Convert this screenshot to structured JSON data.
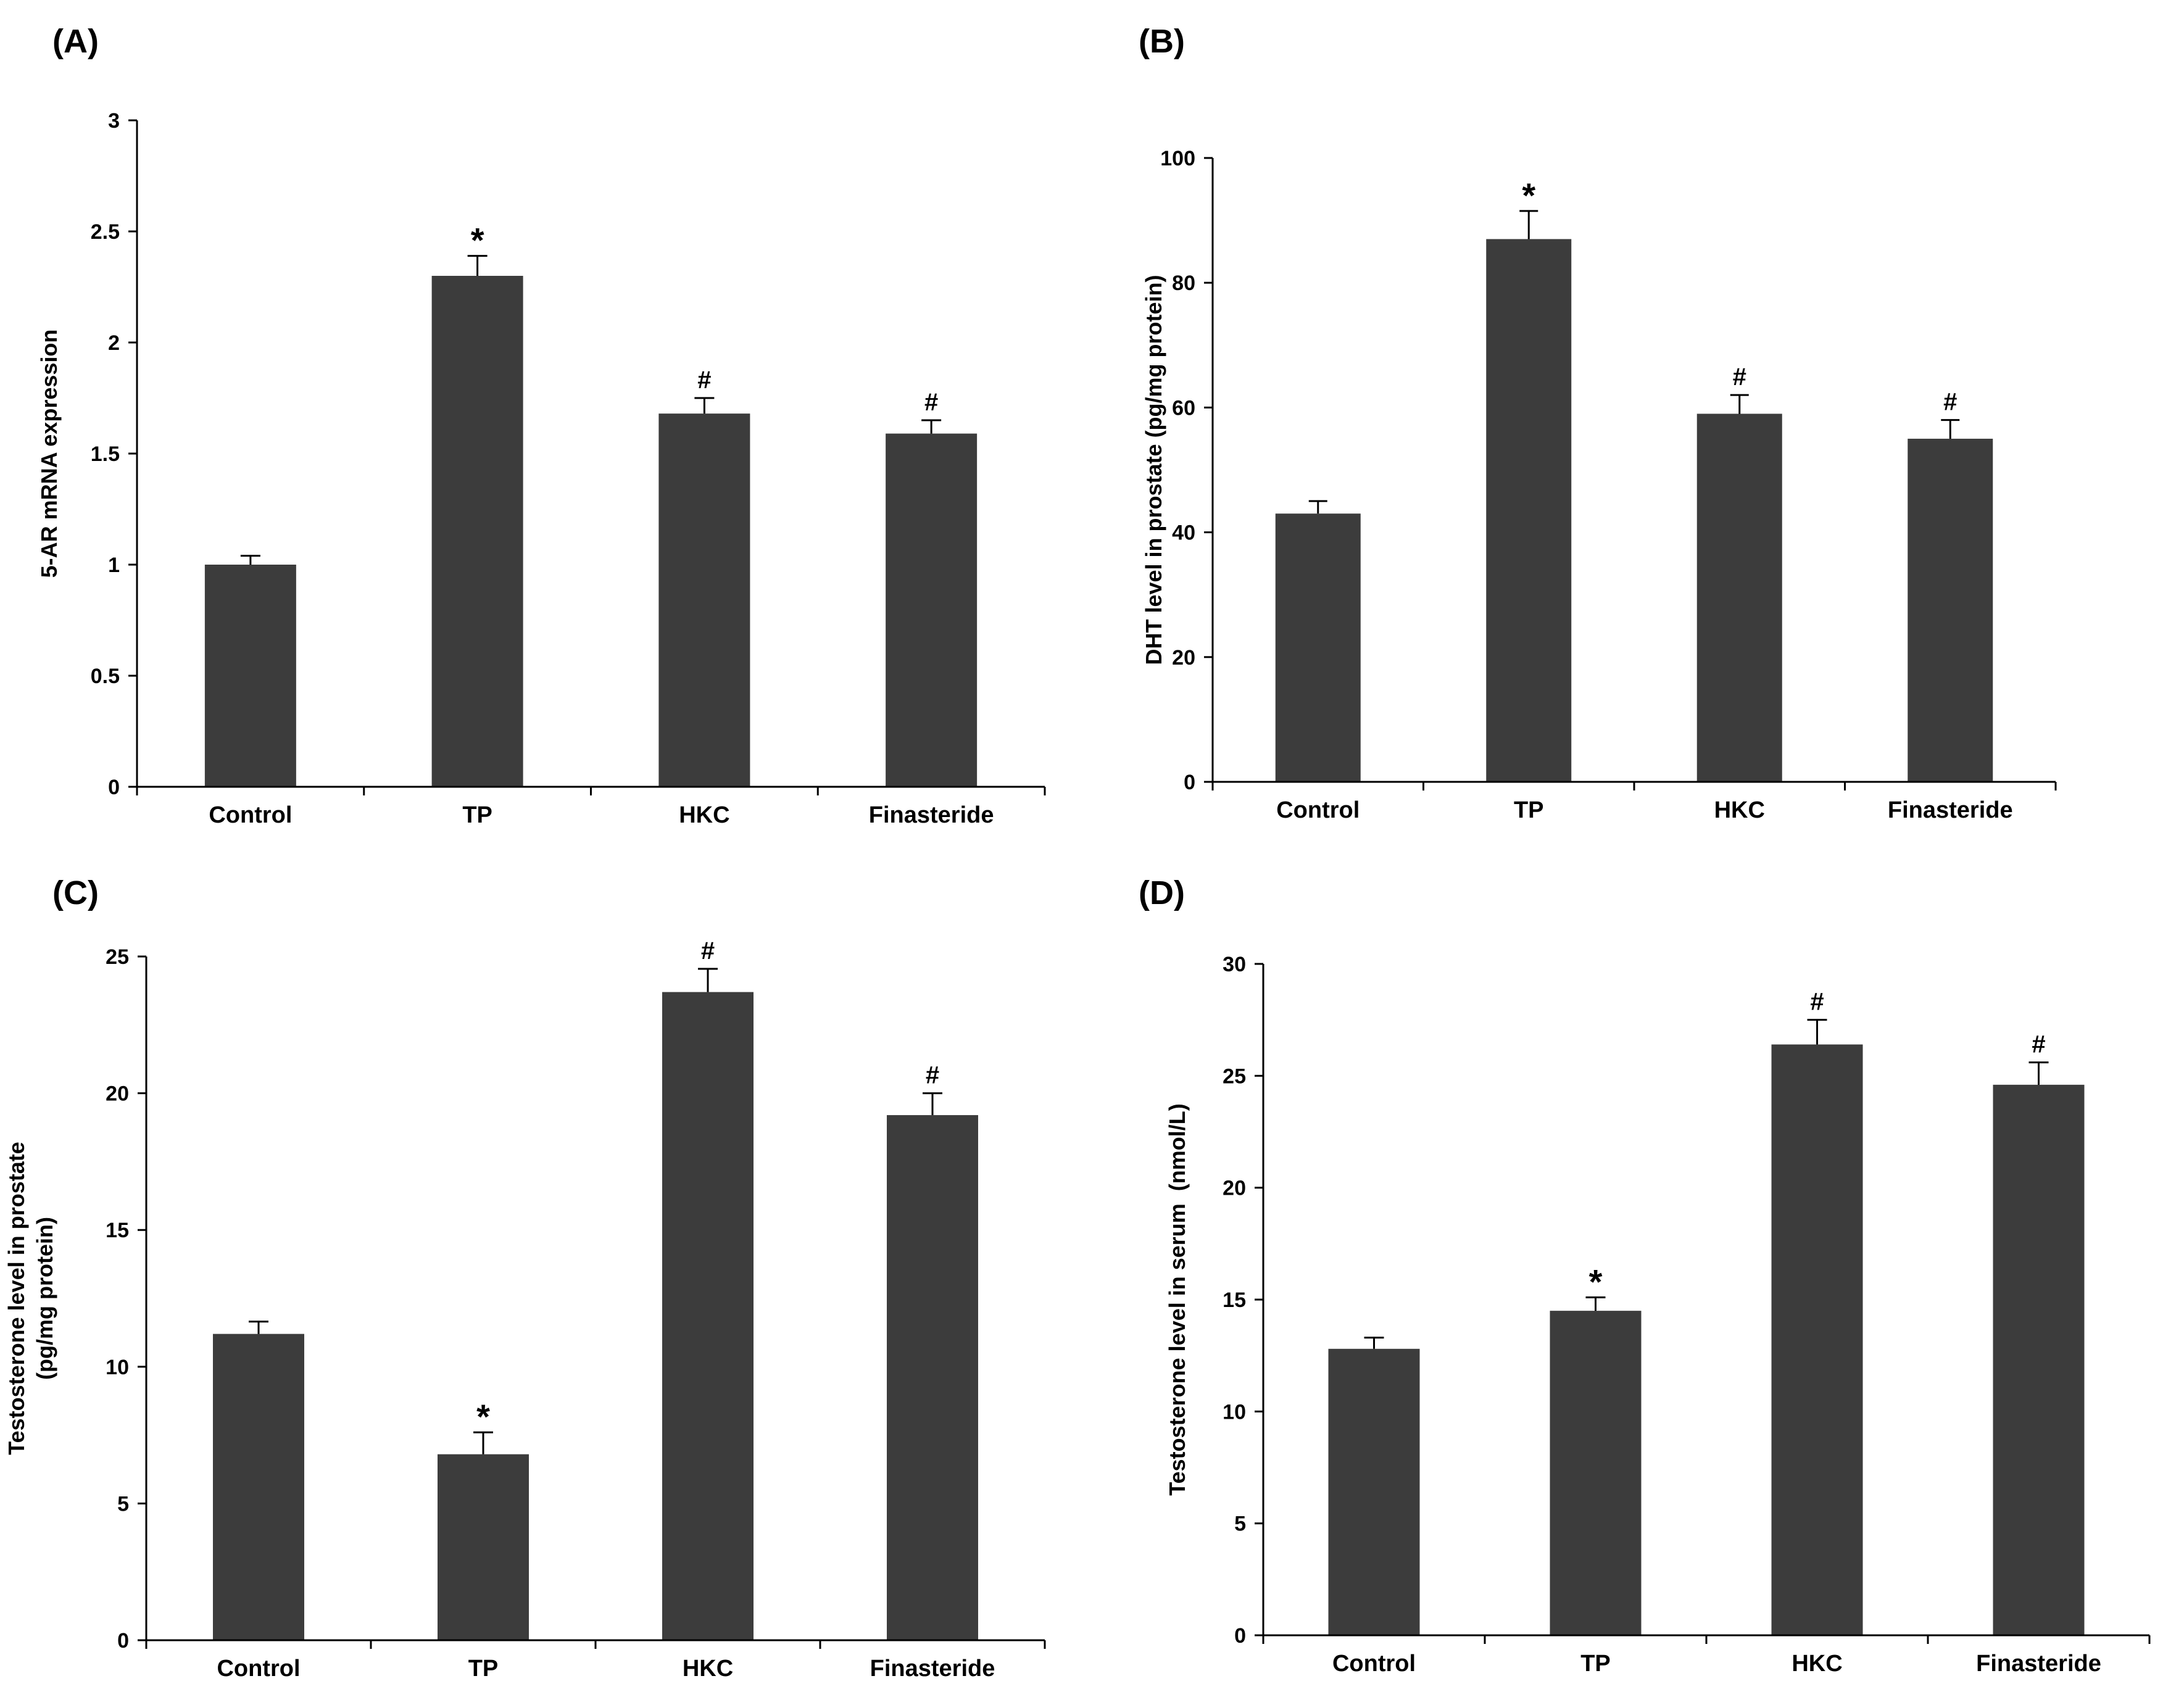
{
  "colors": {
    "bar": "#3c3c3c",
    "axis": "#000000",
    "background": "#ffffff"
  },
  "chart_data": [
    {
      "panel": "(A)",
      "type": "bar",
      "categories": [
        "Control",
        "TP",
        "HKC",
        "Finasteride"
      ],
      "values": [
        1.0,
        2.3,
        1.68,
        1.59
      ],
      "errors": [
        0.04,
        0.09,
        0.07,
        0.06
      ],
      "annotations": [
        "",
        "*",
        "#",
        "#"
      ],
      "xlabel": "",
      "ylabel": [
        "5-AR mRNA expression"
      ],
      "ylim": [
        0,
        3
      ],
      "yticks": [
        0,
        0.5,
        1,
        1.5,
        2,
        2.5,
        3
      ],
      "ytick_labels": [
        "0",
        "0.5",
        "1",
        "1.5",
        "2",
        "2.5",
        "3"
      ],
      "grid": false
    },
    {
      "panel": "(B)",
      "type": "bar",
      "categories": [
        "Control",
        "TP",
        "HKC",
        "Finasteride"
      ],
      "values": [
        43,
        87,
        59,
        55
      ],
      "errors": [
        2,
        4.5,
        3,
        3
      ],
      "annotations": [
        "",
        "*",
        "#",
        "#"
      ],
      "xlabel": "",
      "ylabel": [
        "DHT level in prostate (pg/mg protein)"
      ],
      "ylim": [
        0,
        100
      ],
      "yticks": [
        0,
        20,
        40,
        60,
        80,
        100
      ],
      "ytick_labels": [
        "0",
        "20",
        "40",
        "60",
        "80",
        "100"
      ],
      "grid": false
    },
    {
      "panel": "(C)",
      "type": "bar",
      "categories": [
        "Control",
        "TP",
        "HKC",
        "Finasteride"
      ],
      "values": [
        11.2,
        6.8,
        23.7,
        19.2
      ],
      "errors": [
        0.45,
        0.8,
        0.85,
        0.8
      ],
      "annotations": [
        "",
        "*",
        "#",
        "#"
      ],
      "xlabel": "",
      "ylabel": [
        "Testosterone level in prostate",
        "(pg/mg protein)"
      ],
      "ylim": [
        0,
        25
      ],
      "yticks": [
        0,
        5,
        10,
        15,
        20,
        25
      ],
      "ytick_labels": [
        "0",
        "5",
        "10",
        "15",
        "20",
        "25"
      ],
      "grid": false
    },
    {
      "panel": "(D)",
      "type": "bar",
      "categories": [
        "Control",
        "TP",
        "HKC",
        "Finasteride"
      ],
      "values": [
        12.8,
        14.5,
        26.4,
        24.6
      ],
      "errors": [
        0.5,
        0.6,
        1.1,
        1.0
      ],
      "annotations": [
        "",
        "*",
        "#",
        "#"
      ],
      "xlabel": "",
      "ylabel": [
        "Testosterone level in serum  (nmol/L)"
      ],
      "ylim": [
        0,
        30
      ],
      "yticks": [
        0,
        5,
        10,
        15,
        20,
        25,
        30
      ],
      "ytick_labels": [
        "0",
        "5",
        "10",
        "15",
        "20",
        "25",
        "30"
      ],
      "grid": false
    }
  ]
}
